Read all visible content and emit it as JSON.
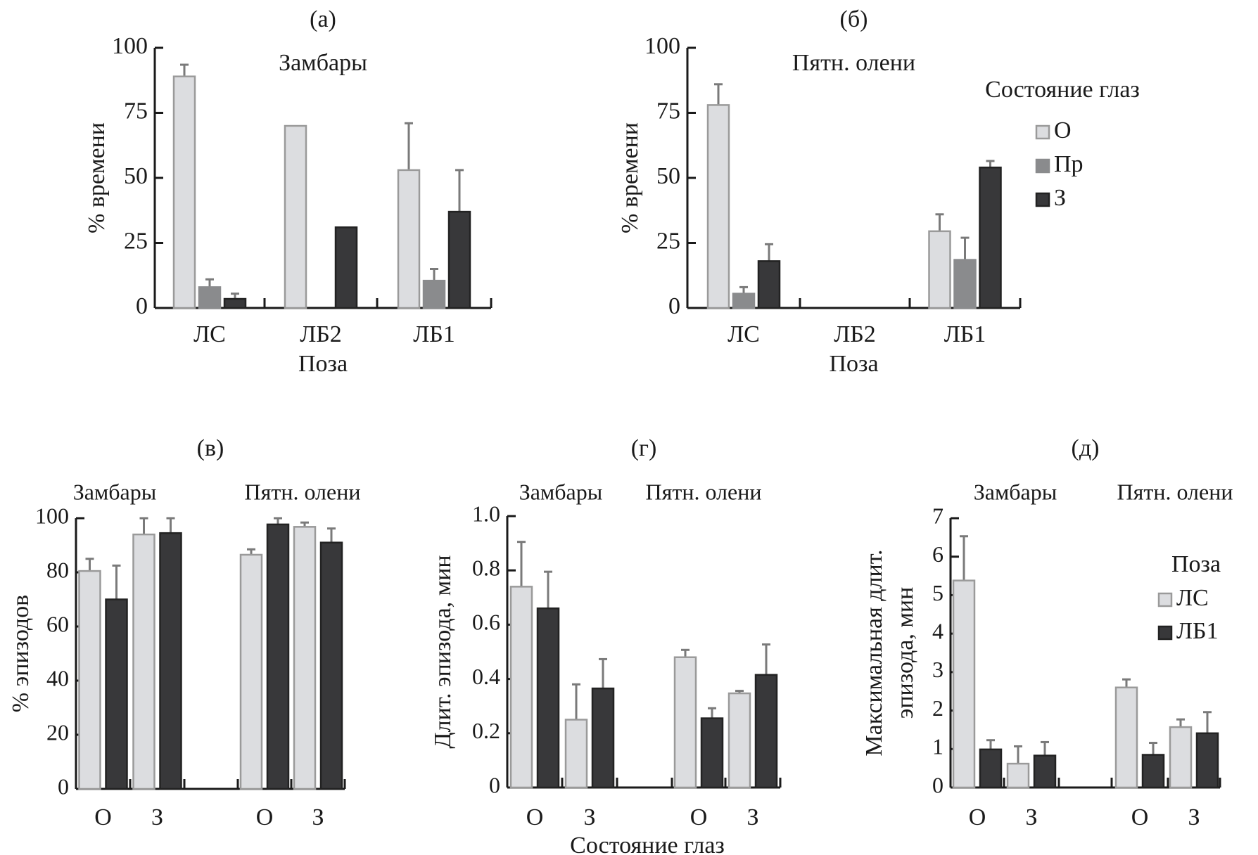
{
  "colors": {
    "O": "#dcdde0",
    "O_border": "#9a9a9a",
    "Pr": "#8a8b8d",
    "Pr_border": "#8a8b8d",
    "Z": "#38383a",
    "Z_border": "#222222",
    "LS": "#dcdde0",
    "LB1": "#38383a",
    "error_bar": "#7a7a7a",
    "axis": "#1a1a1a"
  },
  "chart_data": [
    {
      "id": "a",
      "type": "bar",
      "panel_label": "(а)",
      "title": "Замбары",
      "xlabel": "Поза",
      "ylabel": "% времени",
      "ylim": [
        0,
        100
      ],
      "yticks": [
        0,
        25,
        50,
        75,
        100
      ],
      "categories": [
        "ЛС",
        "ЛБ2",
        "ЛБ1"
      ],
      "series": [
        {
          "name": "О",
          "color_key": "O",
          "values": [
            89,
            70,
            53
          ],
          "errors": [
            4.5,
            null,
            18
          ]
        },
        {
          "name": "Пр",
          "color_key": "Pr",
          "values": [
            8,
            0,
            10.5
          ],
          "errors": [
            3,
            null,
            4.5
          ]
        },
        {
          "name": "З",
          "color_key": "Z",
          "values": [
            3.5,
            31,
            37
          ],
          "errors": [
            2,
            null,
            16
          ]
        }
      ]
    },
    {
      "id": "b",
      "type": "bar",
      "panel_label": "(б)",
      "title": "Пятн. олени",
      "xlabel": "Поза",
      "ylabel": "% времени",
      "ylim": [
        0,
        100
      ],
      "yticks": [
        0,
        25,
        50,
        75,
        100
      ],
      "categories": [
        "ЛС",
        "ЛБ2",
        "ЛБ1"
      ],
      "series": [
        {
          "name": "О",
          "color_key": "O",
          "values": [
            78,
            null,
            29.5
          ],
          "errors": [
            8,
            null,
            6.5
          ]
        },
        {
          "name": "Пр",
          "color_key": "Pr",
          "values": [
            5.5,
            null,
            18.5
          ],
          "errors": [
            2.5,
            null,
            8.5
          ]
        },
        {
          "name": "З",
          "color_key": "Z",
          "values": [
            18,
            null,
            54
          ],
          "errors": [
            6.5,
            null,
            2.5
          ]
        }
      ],
      "legend": {
        "title": "Состояние  глаз",
        "placement": "right",
        "items": [
          {
            "label": "О",
            "color_key": "O"
          },
          {
            "label": "Пр",
            "color_key": "Pr"
          },
          {
            "label": "З",
            "color_key": "Z"
          }
        ]
      }
    },
    {
      "id": "v",
      "type": "bar",
      "panel_label": "(в)",
      "group_titles": [
        "Замбары",
        "Пятн. олени"
      ],
      "xlabel": "",
      "ylabel": "% эпизодов",
      "ylim": [
        0,
        100
      ],
      "yticks": [
        0,
        20,
        40,
        60,
        80,
        100
      ],
      "tick_format": "int",
      "categories": [
        "О",
        "З",
        "О",
        "З"
      ],
      "groups": [
        "Замбары",
        "Замбары",
        "Пятн. олени",
        "Пятн. олени"
      ],
      "series": [
        {
          "name": "ЛС",
          "color_key": "LS",
          "values": [
            80.5,
            94,
            86.5,
            96.8
          ],
          "errors": [
            4.5,
            6,
            2,
            1.6
          ]
        },
        {
          "name": "ЛБ1",
          "color_key": "LB1",
          "values": [
            70,
            94.5,
            97.7,
            91
          ],
          "errors": [
            12.5,
            5.5,
            2.3,
            5.2
          ]
        }
      ]
    },
    {
      "id": "g",
      "type": "bar",
      "panel_label": "(г)",
      "group_titles": [
        "Замбары",
        "Пятн. олени"
      ],
      "xlabel": "Состояние глаз",
      "ylabel": "Длит. эпизода, мин",
      "ylim": [
        0,
        1.0
      ],
      "yticks": [
        0,
        0.2,
        0.4,
        0.6,
        0.8,
        1.0
      ],
      "tick_labels": [
        "0",
        "0.2",
        "0.4",
        "0.6",
        "0.8",
        "1.0"
      ],
      "categories": [
        "О",
        "З",
        "О",
        "З"
      ],
      "groups": [
        "Замбары",
        "Замбары",
        "Пятн. олени",
        "Пятн. олени"
      ],
      "series": [
        {
          "name": "ЛС",
          "color_key": "LS",
          "values": [
            0.74,
            0.25,
            0.48,
            0.347
          ],
          "errors": [
            0.165,
            0.13,
            0.027,
            0.009
          ]
        },
        {
          "name": "ЛБ1",
          "color_key": "LB1",
          "values": [
            0.66,
            0.365,
            0.255,
            0.415
          ],
          "errors": [
            0.135,
            0.108,
            0.037,
            0.112
          ]
        }
      ]
    },
    {
      "id": "d",
      "type": "bar",
      "panel_label": "(д)",
      "group_titles": [
        "Замбары",
        "Пятн. олени"
      ],
      "xlabel": "",
      "ylabel_lines": [
        "Максимальная длит.",
        "эпизода, мин"
      ],
      "ylim": [
        0,
        7
      ],
      "yticks": [
        0,
        1,
        2,
        3,
        4,
        5,
        6,
        7
      ],
      "categories": [
        "О",
        "З",
        "О",
        "З"
      ],
      "groups": [
        "Замбары",
        "Замбары",
        "Пятн. олени",
        "Пятн. олени"
      ],
      "series": [
        {
          "name": "ЛС",
          "color_key": "LS",
          "values": [
            5.38,
            0.62,
            2.6,
            1.57
          ],
          "errors": [
            1.15,
            0.45,
            0.21,
            0.2
          ]
        },
        {
          "name": "ЛБ1",
          "color_key": "LB1",
          "values": [
            0.99,
            0.83,
            0.85,
            1.41
          ],
          "errors": [
            0.24,
            0.35,
            0.31,
            0.55
          ]
        }
      ],
      "legend": {
        "title": "Поза",
        "placement": "right",
        "items": [
          {
            "label": "ЛС",
            "color_key": "LS"
          },
          {
            "label": "ЛБ1",
            "color_key": "LB1"
          }
        ]
      }
    }
  ]
}
